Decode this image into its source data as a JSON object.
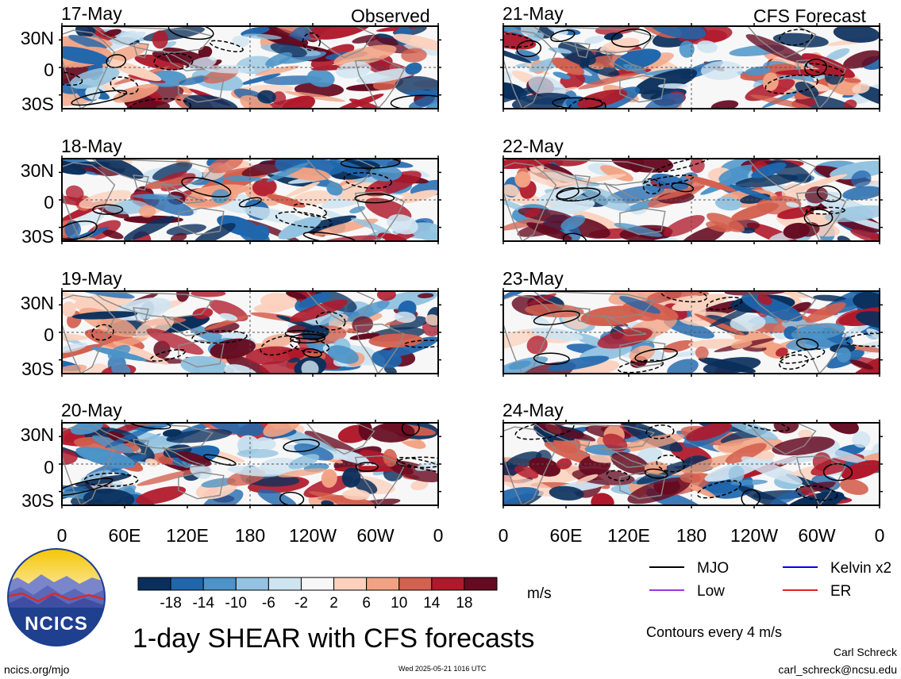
{
  "title": "1-day SHEAR with CFS forecasts",
  "labels": {
    "observed": "Observed",
    "forecast": "CFS Forecast"
  },
  "panels": [
    {
      "date": "17-May",
      "column": "observed"
    },
    {
      "date": "18-May",
      "column": "observed"
    },
    {
      "date": "19-May",
      "column": "observed"
    },
    {
      "date": "20-May",
      "column": "observed"
    },
    {
      "date": "21-May",
      "column": "forecast"
    },
    {
      "date": "22-May",
      "column": "forecast"
    },
    {
      "date": "23-May",
      "column": "forecast"
    },
    {
      "date": "24-May",
      "column": "forecast"
    }
  ],
  "lat_ticks": [
    "30N",
    "0",
    "30S"
  ],
  "lon_ticks": [
    "0",
    "60E",
    "120E",
    "180",
    "120W",
    "60W",
    "0"
  ],
  "colorbar": {
    "ticks": [
      "-18",
      "-14",
      "-10",
      "-6",
      "-2",
      "2",
      "6",
      "10",
      "14",
      "18"
    ],
    "colors": [
      "#0a2f5c",
      "#1f66ad",
      "#4b93c8",
      "#93c3e0",
      "#cfe4f1",
      "#f7f7f7",
      "#fbd1bd",
      "#f2a283",
      "#d4604f",
      "#b0192b",
      "#650a20"
    ],
    "units": "m/s"
  },
  "legend": {
    "items": [
      {
        "label": "MJO",
        "color": "#000000"
      },
      {
        "label": "Kelvin x2",
        "color": "#0000ff"
      },
      {
        "label": "Low",
        "color": "#a033e6"
      },
      {
        "label": "ER",
        "color": "#e02020"
      }
    ],
    "contour_note": "Contours every 4 m/s"
  },
  "logo": {
    "text": "NCICS"
  },
  "footer": {
    "left": "ncics.org/mjo",
    "center": "Wed 2025-05-21 1016 UTC",
    "author": "Carl Schreck",
    "email": "carl_schreck@ncsu.edu"
  }
}
